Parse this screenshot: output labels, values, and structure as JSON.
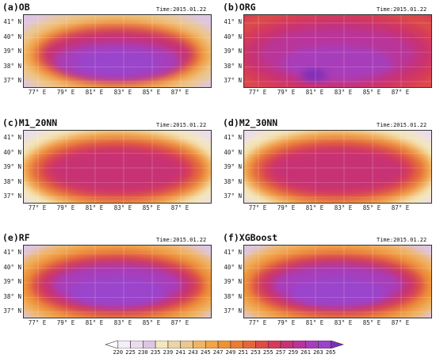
{
  "chart_data": {
    "type": "heatmap",
    "time_label": "Time:2015.01.22",
    "lat_labels": [
      "41° N",
      "40° N",
      "39° N",
      "38° N",
      "37° N"
    ],
    "lon_labels": [
      "77° E",
      "79° E",
      "81° E",
      "83° E",
      "85° E",
      "87° E"
    ],
    "colorbar": {
      "ticks": [
        "220",
        "225",
        "230",
        "235",
        "239",
        "241",
        "243",
        "245",
        "247",
        "249",
        "251",
        "253",
        "255",
        "257",
        "259",
        "261",
        "263",
        "265"
      ],
      "colors": [
        "#ffffff",
        "#f4eef6",
        "#eadcee",
        "#ddc6e2",
        "#f3e7bd",
        "#ead5a8",
        "#ecc78e",
        "#f0b563",
        "#f2a447",
        "#ee9137",
        "#ea7c33",
        "#e3663a",
        "#dc4d46",
        "#d63a5a",
        "#c73275",
        "#b9349a",
        "#a83dbb",
        "#9a44cc",
        "#7d2fb5"
      ]
    },
    "panels": [
      {
        "title": "(a)OB",
        "time": "Time:2015.01.22",
        "style": "ob"
      },
      {
        "title": "(b)ORG",
        "time": "Time:2015.01.22",
        "style": "org"
      },
      {
        "title": "(c)M1_20NN",
        "time": "Time:2015.01.22",
        "style": "nn"
      },
      {
        "title": "(d)M2_30NN",
        "time": "Time:2015.01.22",
        "style": "nn"
      },
      {
        "title": "(e)RF",
        "time": "Time:2015.01.22",
        "style": "ml"
      },
      {
        "title": "(f)XGBoost",
        "time": "Time:2015.01.22",
        "style": "ml"
      }
    ]
  }
}
